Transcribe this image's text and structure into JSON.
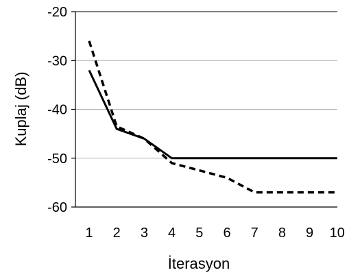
{
  "chart_data": {
    "type": "line",
    "x": [
      1,
      2,
      3,
      4,
      5,
      6,
      7,
      8,
      9,
      10
    ],
    "xlabel": "İterasyon",
    "ylabel": "Kuplaj (dB)",
    "ylim": [
      -60,
      -20
    ],
    "yticks": [
      -20,
      -30,
      -40,
      -50,
      -60
    ],
    "grid": "horizontal",
    "series": [
      {
        "style": "solid",
        "color": "#000000",
        "values": [
          -32,
          -44,
          -46,
          -50,
          -50,
          -50,
          -50,
          -50,
          -50,
          -50
        ]
      },
      {
        "style": "dashed",
        "color": "#000000",
        "values": [
          -26,
          -43.5,
          -46,
          -51,
          -52.5,
          -54,
          -57,
          -57,
          -57,
          -57
        ]
      }
    ]
  }
}
